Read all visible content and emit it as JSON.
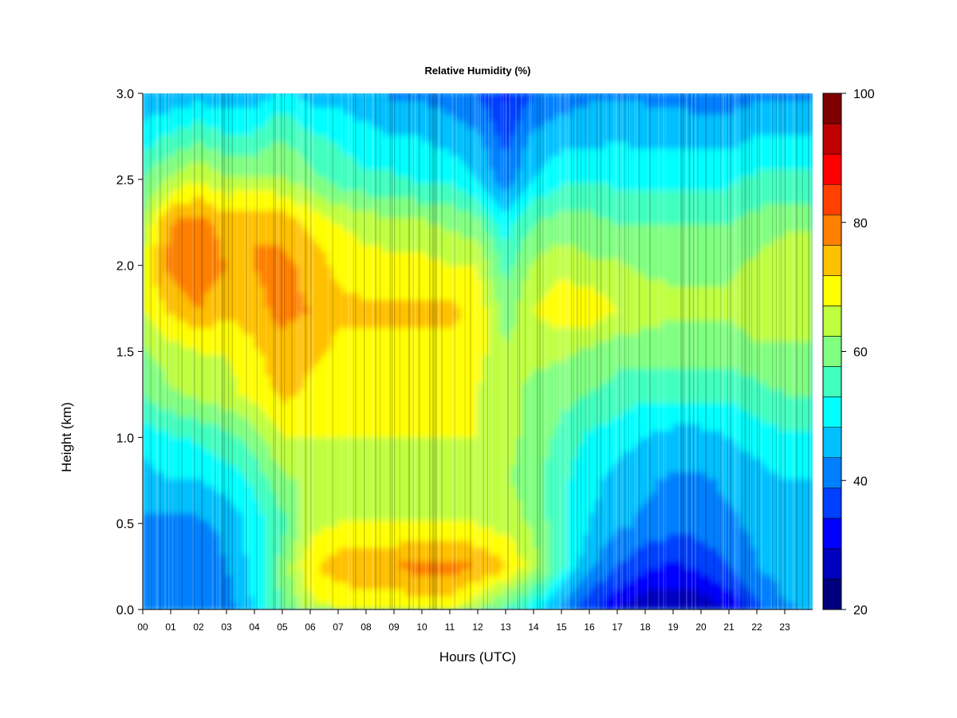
{
  "chart_data": {
    "type": "heatmap",
    "title": "Relative Humidity (%)",
    "xlabel": "Hours (UTC)",
    "ylabel": "Height (km)",
    "xlim": [
      0,
      24
    ],
    "ylim": [
      0.0,
      3.0
    ],
    "x_tick_labels": [
      "00",
      "01",
      "02",
      "03",
      "04",
      "05",
      "06",
      "07",
      "08",
      "09",
      "10",
      "11",
      "12",
      "13",
      "14",
      "15",
      "16",
      "17",
      "18",
      "19",
      "20",
      "21",
      "22",
      "23"
    ],
    "y_tick_labels": [
      "0.0",
      "0.5",
      "1.0",
      "1.5",
      "2.0",
      "2.5",
      "3.0"
    ],
    "colorbar": {
      "range": [
        20,
        100
      ],
      "step": 5,
      "tick_labels": [
        "20",
        "40",
        "60",
        "80",
        "100"
      ],
      "colors": [
        "#00007f",
        "#0000bf",
        "#0000ff",
        "#0040ff",
        "#0080ff",
        "#00c0ff",
        "#00ffff",
        "#40ffbf",
        "#80ff80",
        "#bfff40",
        "#ffff00",
        "#ffc000",
        "#ff8000",
        "#ff4000",
        "#ff0000",
        "#bf0000",
        "#7f0000"
      ]
    },
    "heights_km": [
      0.0,
      0.25,
      0.5,
      0.75,
      1.0,
      1.25,
      1.5,
      1.75,
      2.0,
      2.25,
      2.5,
      2.75,
      3.0
    ],
    "hours": [
      0,
      1,
      2,
      3,
      4,
      5,
      6,
      7,
      8,
      9,
      10,
      11,
      12,
      13,
      14,
      15,
      16,
      17,
      18,
      19,
      20,
      21,
      22,
      23,
      24
    ],
    "values": [
      [
        42,
        40,
        40,
        42,
        50,
        60,
        68,
        70,
        70,
        70,
        72,
        72,
        66,
        58,
        52,
        44,
        36,
        30,
        26,
        25,
        26,
        30,
        38,
        44,
        46
      ],
      [
        42,
        42,
        42,
        45,
        52,
        62,
        74,
        78,
        80,
        80,
        82,
        82,
        80,
        76,
        68,
        56,
        46,
        40,
        36,
        34,
        36,
        40,
        45,
        48,
        48
      ],
      [
        44,
        44,
        44,
        46,
        52,
        58,
        68,
        70,
        70,
        70,
        70,
        70,
        70,
        68,
        64,
        56,
        50,
        46,
        44,
        42,
        42,
        44,
        46,
        48,
        48
      ],
      [
        48,
        50,
        50,
        52,
        56,
        64,
        66,
        68,
        68,
        70,
        68,
        68,
        68,
        66,
        62,
        56,
        52,
        48,
        46,
        44,
        44,
        46,
        48,
        50,
        50
      ],
      [
        52,
        54,
        56,
        58,
        62,
        70,
        70,
        70,
        70,
        70,
        70,
        70,
        70,
        66,
        64,
        58,
        54,
        52,
        50,
        48,
        48,
        50,
        52,
        54,
        54
      ],
      [
        60,
        64,
        66,
        68,
        72,
        76,
        74,
        72,
        72,
        72,
        72,
        72,
        70,
        66,
        64,
        62,
        60,
        58,
        56,
        56,
        56,
        56,
        58,
        60,
        60
      ],
      [
        64,
        68,
        70,
        70,
        74,
        78,
        76,
        74,
        74,
        74,
        74,
        74,
        72,
        66,
        66,
        66,
        64,
        62,
        62,
        62,
        62,
        62,
        64,
        64,
        64
      ],
      [
        70,
        76,
        80,
        76,
        78,
        82,
        80,
        76,
        76,
        76,
        76,
        76,
        74,
        62,
        70,
        74,
        74,
        70,
        68,
        66,
        66,
        66,
        68,
        68,
        68
      ],
      [
        72,
        82,
        84,
        80,
        80,
        82,
        78,
        74,
        72,
        72,
        72,
        70,
        70,
        58,
        66,
        68,
        66,
        66,
        64,
        64,
        64,
        64,
        66,
        68,
        68
      ],
      [
        66,
        80,
        82,
        78,
        80,
        78,
        74,
        70,
        68,
        66,
        66,
        64,
        62,
        52,
        60,
        62,
        62,
        60,
        60,
        60,
        60,
        60,
        62,
        64,
        64
      ],
      [
        60,
        66,
        70,
        66,
        66,
        66,
        62,
        58,
        56,
        56,
        54,
        54,
        50,
        42,
        50,
        54,
        54,
        54,
        54,
        54,
        54,
        54,
        56,
        56,
        56
      ],
      [
        52,
        56,
        58,
        56,
        56,
        60,
        56,
        54,
        52,
        50,
        50,
        48,
        46,
        38,
        46,
        48,
        48,
        50,
        48,
        48,
        48,
        48,
        50,
        50,
        50
      ],
      [
        46,
        46,
        48,
        46,
        46,
        52,
        48,
        48,
        46,
        44,
        44,
        42,
        40,
        34,
        40,
        42,
        44,
        44,
        44,
        44,
        42,
        42,
        44,
        44,
        44
      ]
    ]
  }
}
